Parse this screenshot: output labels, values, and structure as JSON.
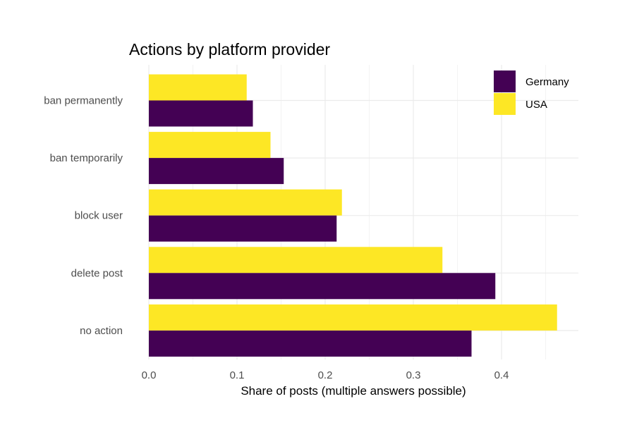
{
  "chart_data": {
    "type": "bar",
    "orientation": "horizontal",
    "title": "Actions by platform provider",
    "xlabel": "Share of posts (multiple answers possible)",
    "ylabel": "",
    "xlim": [
      0,
      0.48
    ],
    "xticks": [
      "0.0",
      "0.1",
      "0.2",
      "0.3",
      "0.4"
    ],
    "xtick_values": [
      0,
      0.1,
      0.2,
      0.3,
      0.4
    ],
    "categories": [
      "ban permanently",
      "ban temporarily",
      "block user",
      "delete post",
      "no action"
    ],
    "series": [
      {
        "name": "Germany",
        "color": "#440154",
        "values": [
          0.118,
          0.153,
          0.213,
          0.393,
          0.366
        ]
      },
      {
        "name": "USA",
        "color": "#FDE725",
        "values": [
          0.111,
          0.138,
          0.219,
          0.333,
          0.463
        ]
      }
    ],
    "grid": true,
    "legend": {
      "position": "top-right",
      "entries": [
        "Germany",
        "USA"
      ]
    }
  }
}
